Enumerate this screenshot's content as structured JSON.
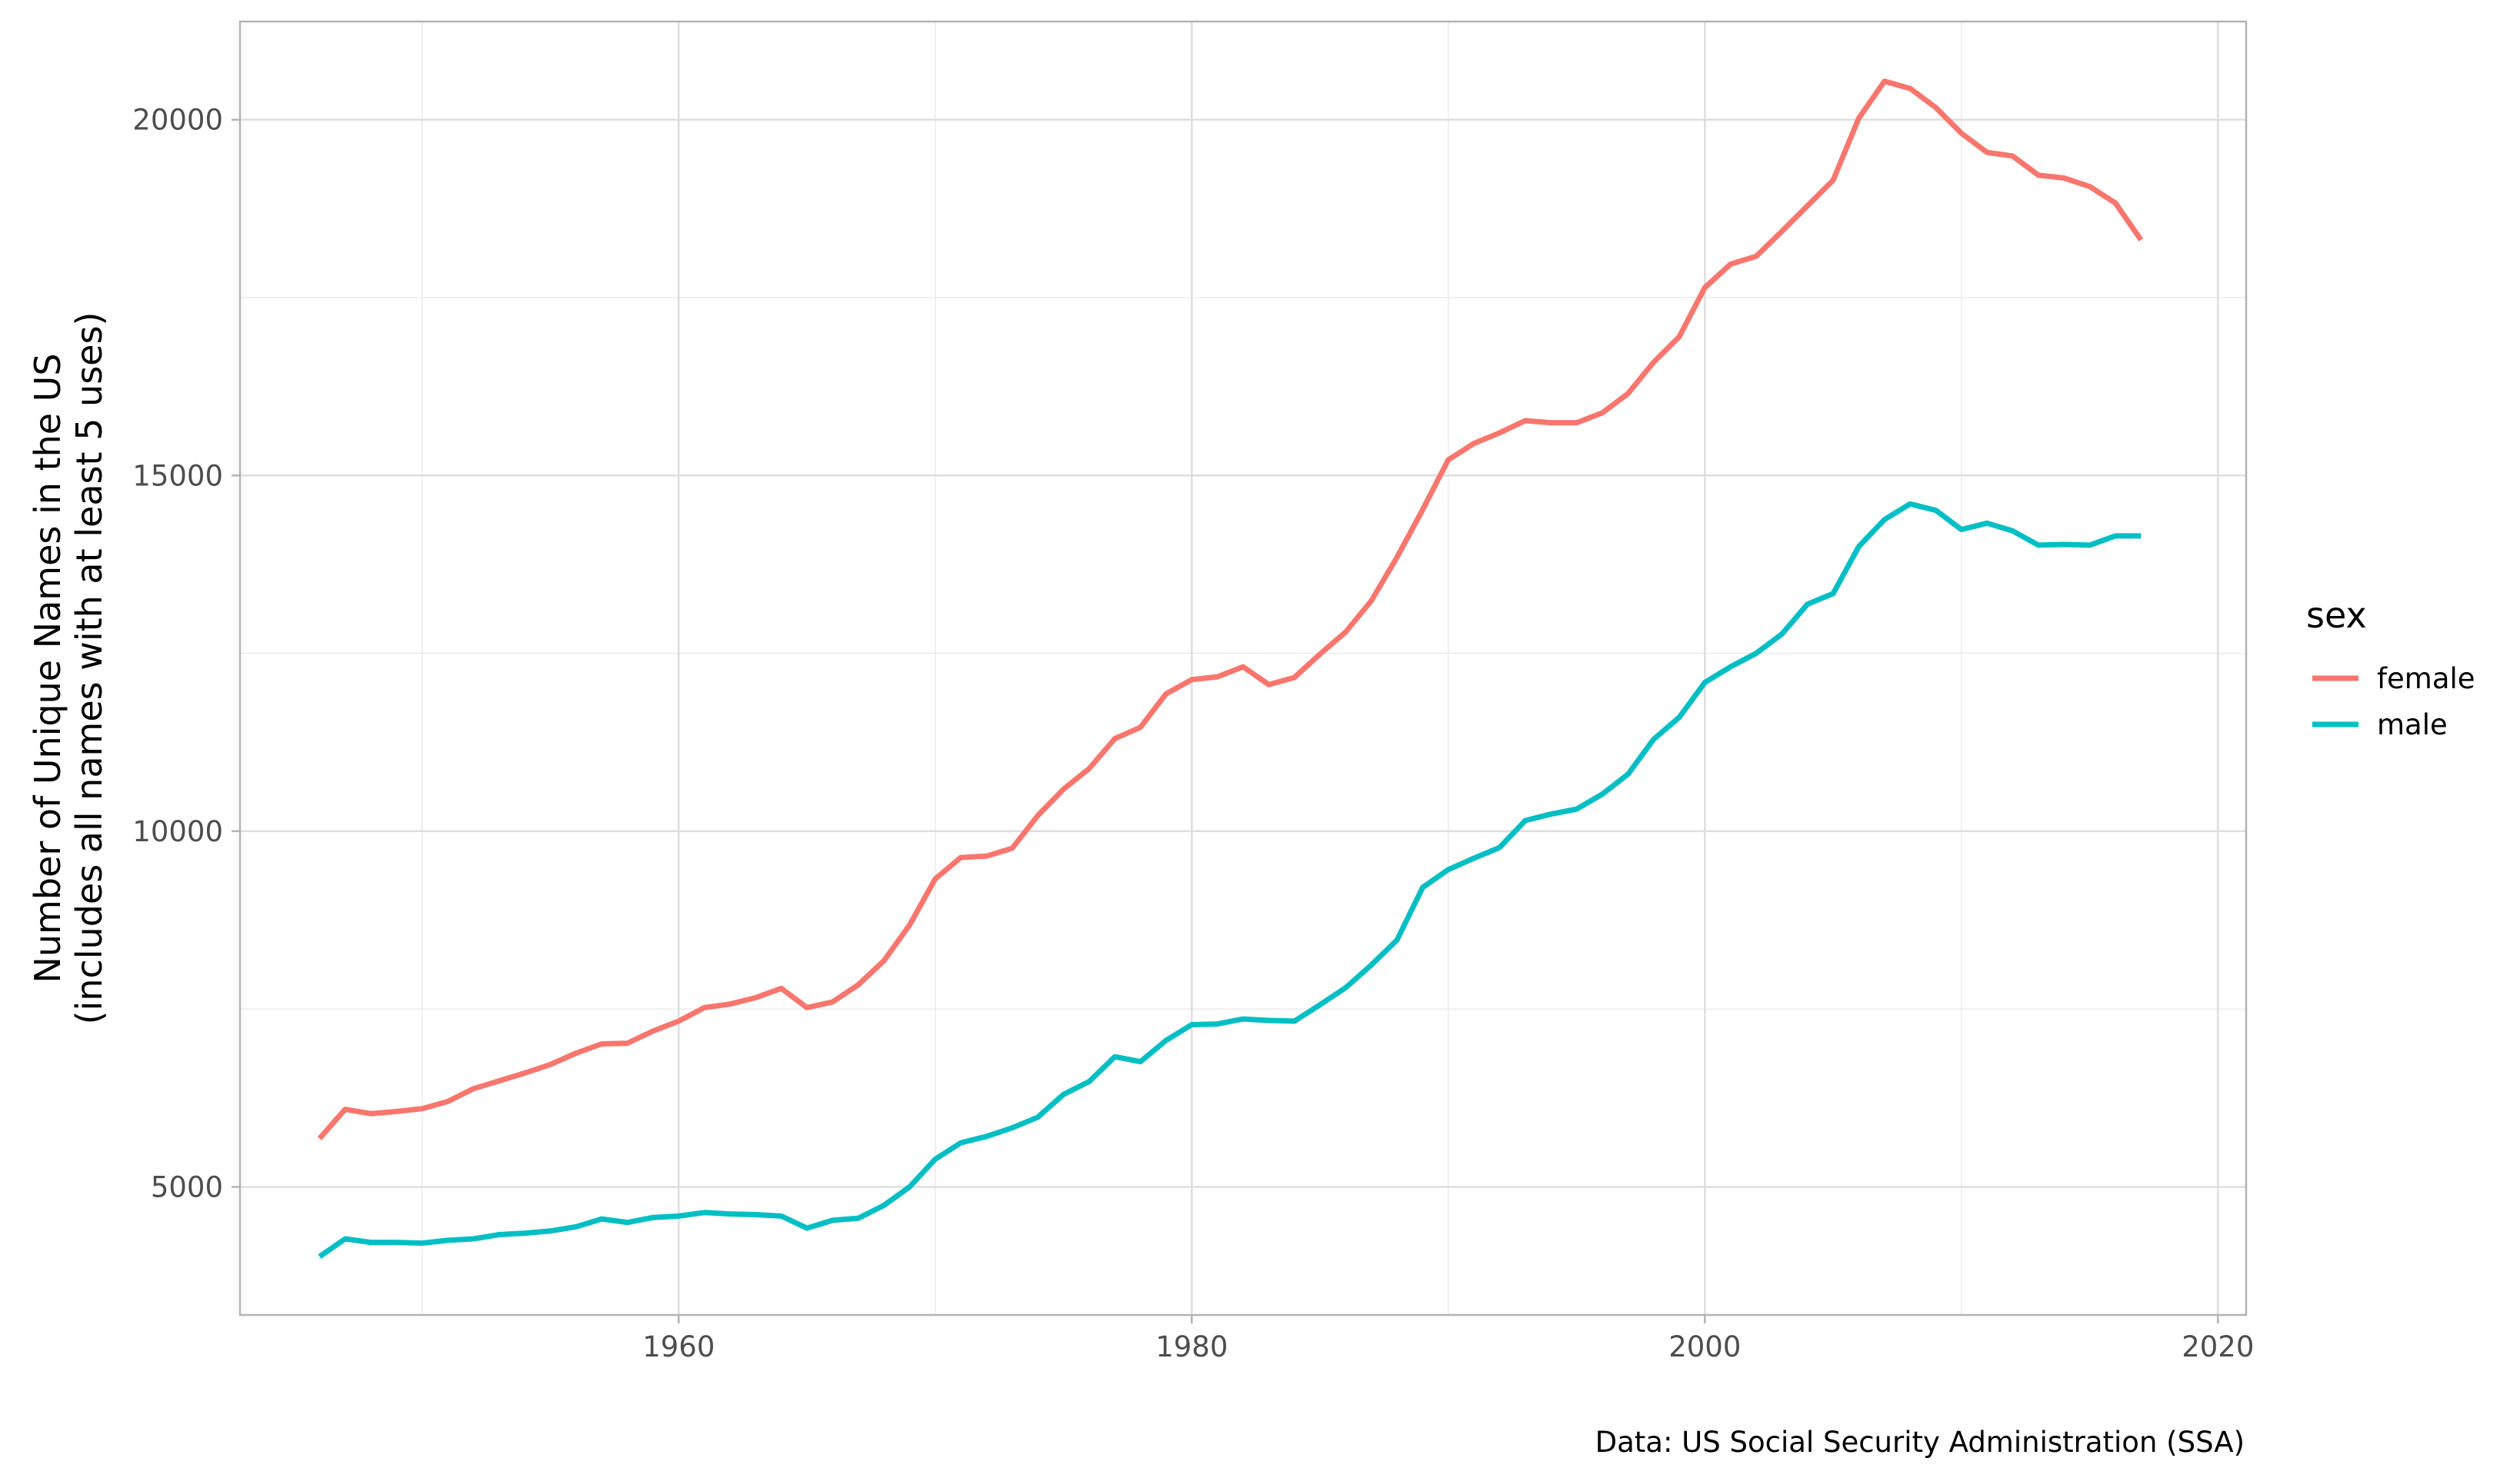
{
  "chart_data": {
    "type": "line",
    "title": "",
    "xlabel": "",
    "ylabel_lines": [
      "Number of Unique Names in the US",
      "(includes all names with at least 5 uses)"
    ],
    "caption": "Data: US  Social Security Administration (SSA)",
    "xlim": [
      1942.9,
      2021.1
    ],
    "ylim": [
      3200,
      21380
    ],
    "x_ticks": [
      1960,
      1980,
      2000,
      2020
    ],
    "y_ticks": [
      5000,
      10000,
      15000,
      20000
    ],
    "grid": true,
    "legend": {
      "title": "sex",
      "placement": "right"
    },
    "x": [
      1946,
      1947,
      1948,
      1949,
      1950,
      1951,
      1952,
      1953,
      1954,
      1955,
      1956,
      1957,
      1958,
      1959,
      1960,
      1961,
      1962,
      1963,
      1964,
      1965,
      1966,
      1967,
      1968,
      1969,
      1970,
      1971,
      1972,
      1973,
      1974,
      1975,
      1976,
      1977,
      1978,
      1979,
      1980,
      1981,
      1982,
      1983,
      1984,
      1985,
      1986,
      1987,
      1988,
      1989,
      1990,
      1991,
      1992,
      1993,
      1994,
      1995,
      1996,
      1997,
      1998,
      1999,
      2000,
      2001,
      2002,
      2003,
      2004,
      2005,
      2006,
      2007,
      2008,
      2009,
      2010,
      2011,
      2012,
      2013,
      2014,
      2015,
      2016,
      2017
    ],
    "series": [
      {
        "name": "female",
        "color": "#F8766D",
        "values": [
          5680,
          6090,
          6030,
          6060,
          6100,
          6200,
          6380,
          6490,
          6600,
          6720,
          6880,
          7010,
          7020,
          7190,
          7330,
          7520,
          7570,
          7660,
          7790,
          7520,
          7600,
          7840,
          8180,
          8680,
          9330,
          9630,
          9650,
          9760,
          10220,
          10590,
          10880,
          11300,
          11460,
          11930,
          12130,
          12170,
          12310,
          12060,
          12160,
          12490,
          12800,
          13240,
          13850,
          14520,
          15220,
          15450,
          15600,
          15770,
          15740,
          15740,
          15880,
          16150,
          16590,
          16950,
          17640,
          17970,
          18080,
          18430,
          18790,
          19150,
          20020,
          20540,
          20440,
          20170,
          19810,
          19540,
          19490,
          19220,
          19180,
          19060,
          18830,
          18310
        ]
      },
      {
        "name": "male",
        "color": "#00BFC4",
        "values": [
          4020,
          4270,
          4220,
          4220,
          4210,
          4250,
          4270,
          4330,
          4350,
          4380,
          4440,
          4550,
          4500,
          4570,
          4590,
          4640,
          4620,
          4610,
          4590,
          4420,
          4530,
          4560,
          4740,
          5000,
          5390,
          5620,
          5710,
          5830,
          5980,
          6300,
          6480,
          6830,
          6760,
          7060,
          7280,
          7290,
          7360,
          7340,
          7330,
          7560,
          7800,
          8120,
          8470,
          9210,
          9460,
          9620,
          9770,
          10150,
          10240,
          10310,
          10520,
          10800,
          11290,
          11600,
          12090,
          12310,
          12500,
          12770,
          13190,
          13340,
          14000,
          14380,
          14600,
          14510,
          14240,
          14330,
          14220,
          14020,
          14030,
          14020,
          14150,
          14150
        ]
      }
    ]
  }
}
